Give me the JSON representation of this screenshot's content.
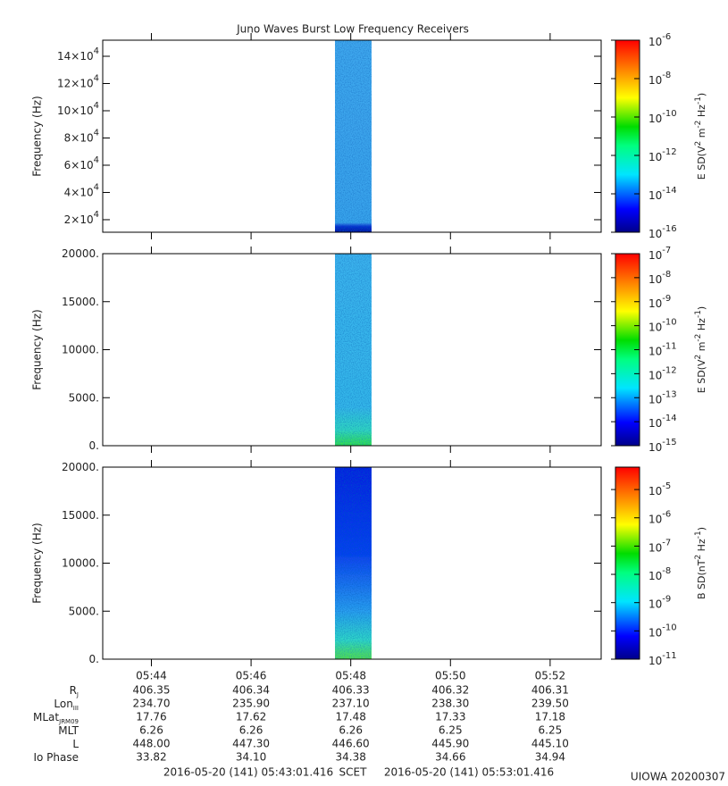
{
  "chart_data": [
    {
      "type": "spectrogram",
      "title": "Juno Waves Burst Low Frequency Receivers",
      "y_label": "Frequency (Hz)",
      "ylim": [
        10800,
        151800
      ],
      "yticks": [
        {
          "value": 20000,
          "label": "2×10",
          "exponent": "4"
        },
        {
          "value": 40000,
          "label": "4×10",
          "exponent": "4"
        },
        {
          "value": 60000,
          "label": "6×10",
          "exponent": "4"
        },
        {
          "value": 80000,
          "label": "8×10",
          "exponent": "4"
        },
        {
          "value": 100000,
          "label": "10×10",
          "exponent": "4"
        },
        {
          "value": 120000,
          "label": "12×10",
          "exponent": "4"
        },
        {
          "value": 140000,
          "label": "14×10",
          "exponent": "4"
        }
      ],
      "xlim": [
        "2016-05-20T05:43:01.416",
        "2016-05-20T05:53:01.416"
      ],
      "xticks": [
        "2016-05-20T05:44:00",
        "2016-05-20T05:46:00",
        "2016-05-20T05:48:00",
        "2016-05-20T05:50:00",
        "2016-05-20T05:52:00"
      ],
      "burst": {
        "x": [
          "2016-05-20T05:47:41",
          "2016-05-20T05:48:25"
        ]
      },
      "zscale": "log",
      "zlim": [
        1e-16,
        1e-06
      ],
      "zticks": [
        {
          "value": 1e-16,
          "label": "10",
          "exponent": "-16"
        },
        {
          "value": 1e-14,
          "label": "10",
          "exponent": "-14"
        },
        {
          "value": 1e-12,
          "label": "10",
          "exponent": "-12"
        },
        {
          "value": 1e-10,
          "label": "10",
          "exponent": "-10"
        },
        {
          "value": 1e-08,
          "label": "10",
          "exponent": "-8"
        },
        {
          "value": 1e-06,
          "label": "10",
          "exponent": "-6"
        }
      ],
      "z_label": [
        "E SD(V",
        "2",
        " m",
        "-2",
        " Hz",
        "-1",
        ")"
      ]
    },
    {
      "type": "spectrogram",
      "y_label": "Frequency (Hz)",
      "ylim": [
        0,
        20000
      ],
      "yticks": [
        {
          "value": 0,
          "label": "0."
        },
        {
          "value": 5000,
          "label": "5000."
        },
        {
          "value": 10000,
          "label": "10000."
        },
        {
          "value": 15000,
          "label": "15000."
        },
        {
          "value": 20000,
          "label": "20000."
        }
      ],
      "xlim": [
        "2016-05-20T05:43:01.416",
        "2016-05-20T05:53:01.416"
      ],
      "xticks": [
        "2016-05-20T05:44:00",
        "2016-05-20T05:46:00",
        "2016-05-20T05:48:00",
        "2016-05-20T05:50:00",
        "2016-05-20T05:52:00"
      ],
      "burst": {
        "x": [
          "2016-05-20T05:47:41",
          "2016-05-20T05:48:25"
        ]
      },
      "zscale": "log",
      "zlim": [
        1e-15,
        1e-07
      ],
      "zticks": [
        {
          "value": 1e-15,
          "label": "10",
          "exponent": "-15"
        },
        {
          "value": 1e-14,
          "label": "10",
          "exponent": "-14"
        },
        {
          "value": 1e-13,
          "label": "10",
          "exponent": "-13"
        },
        {
          "value": 1e-12,
          "label": "10",
          "exponent": "-12"
        },
        {
          "value": 1e-11,
          "label": "10",
          "exponent": "-11"
        },
        {
          "value": 1e-10,
          "label": "10",
          "exponent": "-10"
        },
        {
          "value": 1e-09,
          "label": "10",
          "exponent": "-9"
        },
        {
          "value": 1e-08,
          "label": "10",
          "exponent": "-8"
        },
        {
          "value": 1e-07,
          "label": "10",
          "exponent": "-7"
        }
      ],
      "z_label": [
        "E SD(V",
        "2",
        " m",
        "-2",
        " Hz",
        "-1",
        ")"
      ]
    },
    {
      "type": "spectrogram",
      "y_label": "Frequency (Hz)",
      "ylim": [
        0,
        20000
      ],
      "yticks": [
        {
          "value": 0,
          "label": "0."
        },
        {
          "value": 5000,
          "label": "5000."
        },
        {
          "value": 10000,
          "label": "10000."
        },
        {
          "value": 15000,
          "label": "15000."
        },
        {
          "value": 20000,
          "label": "20000."
        }
      ],
      "xlim": [
        "2016-05-20T05:43:01.416",
        "2016-05-20T05:53:01.416"
      ],
      "xticks": [
        {
          "value": "2016-05-20T05:44:00",
          "label": "05:44"
        },
        {
          "value": "2016-05-20T05:46:00",
          "label": "05:46"
        },
        {
          "value": "2016-05-20T05:48:00",
          "label": "05:48"
        },
        {
          "value": "2016-05-20T05:50:00",
          "label": "05:50"
        },
        {
          "value": "2016-05-20T05:52:00",
          "label": "05:52"
        }
      ],
      "burst": {
        "x": [
          "2016-05-20T05:47:41",
          "2016-05-20T05:48:25"
        ]
      },
      "zscale": "log",
      "zlim": [
        1e-11,
        6.2e-05
      ],
      "zticks": [
        {
          "value": 1e-11,
          "label": "10",
          "exponent": "-11"
        },
        {
          "value": 1e-10,
          "label": "10",
          "exponent": "-10"
        },
        {
          "value": 1e-09,
          "label": "10",
          "exponent": "-9"
        },
        {
          "value": 1e-08,
          "label": "10",
          "exponent": "-8"
        },
        {
          "value": 1e-07,
          "label": "10",
          "exponent": "-7"
        },
        {
          "value": 1e-06,
          "label": "10",
          "exponent": "-6"
        },
        {
          "value": 1e-05,
          "label": "10",
          "exponent": "-5"
        }
      ],
      "z_label": [
        "B SD(nT",
        "2",
        " Hz",
        "-1",
        ")"
      ]
    }
  ],
  "ephemeris": {
    "rows": [
      {
        "label": "R",
        "sub": "J",
        "values": [
          "406.35",
          "406.34",
          "406.33",
          "406.32",
          "406.31"
        ]
      },
      {
        "label": "Lon",
        "sub": "III",
        "values": [
          "234.70",
          "235.90",
          "237.10",
          "238.30",
          "239.50"
        ]
      },
      {
        "label": "MLat",
        "sub": "JRM09",
        "values": [
          "17.76",
          "17.62",
          "17.48",
          "17.33",
          "17.18"
        ]
      },
      {
        "label": "MLT",
        "values": [
          "6.26",
          "6.26",
          "6.26",
          "6.25",
          "6.25"
        ]
      },
      {
        "label": "L",
        "values": [
          "448.00",
          "447.30",
          "446.60",
          "445.90",
          "445.10"
        ]
      },
      {
        "label": "Io Phase",
        "values": [
          "33.82",
          "34.10",
          "34.38",
          "34.66",
          "34.94"
        ]
      }
    ]
  },
  "footer": {
    "start": "2016-05-20 (141) 05:43:01.416",
    "label": "SCET",
    "end": "2016-05-20 (141) 05:53:01.416",
    "stamp": "UIOWA 20200307"
  }
}
